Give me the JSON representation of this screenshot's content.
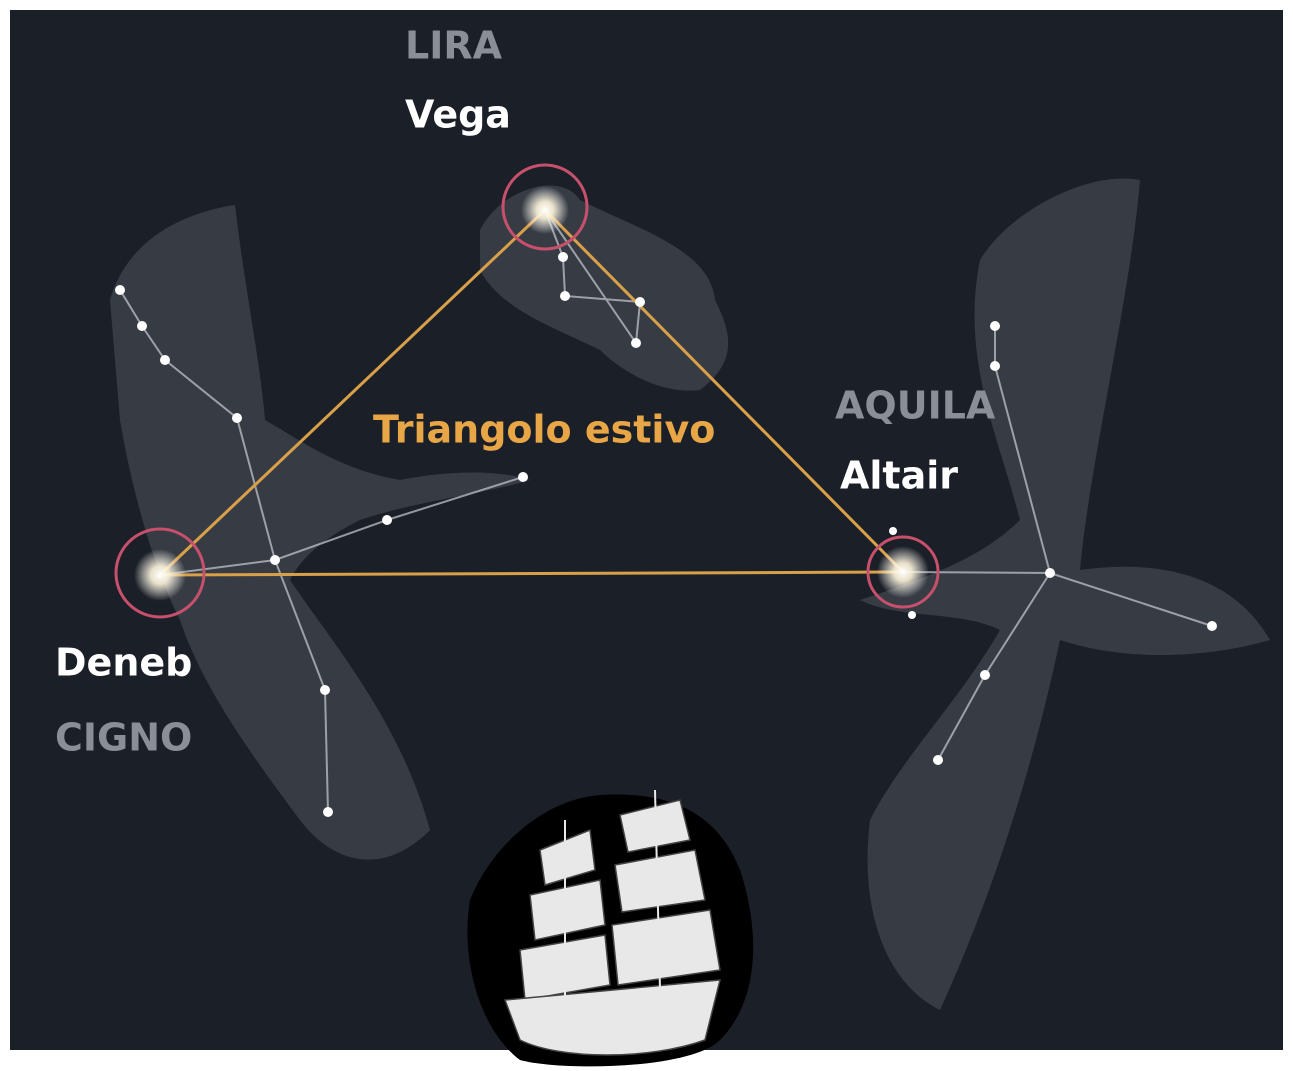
{
  "constellations": [
    {
      "name": "LIRA",
      "star": "Vega"
    },
    {
      "name": "AQUILA",
      "star": "Altair"
    },
    {
      "name": "CIGNO",
      "star": "Deneb"
    }
  ],
  "asterism": {
    "label": "Triangolo estivo"
  }
}
